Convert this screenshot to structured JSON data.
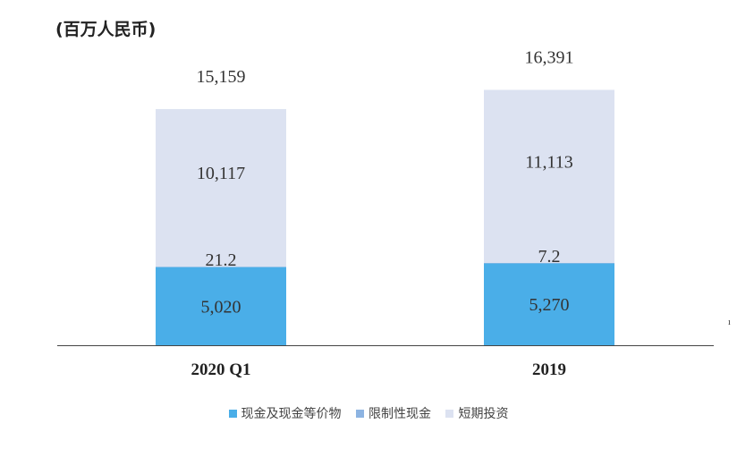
{
  "unit_label": "(百万人民币)",
  "stray_mark": "ı",
  "colors": {
    "cash": "#4aaee8",
    "restricted": "#8db4e2",
    "short_term": "#dce2f1"
  },
  "chart_data": {
    "type": "bar",
    "stacked": true,
    "categories": [
      "2020 Q1",
      "2019"
    ],
    "series": [
      {
        "name": "现金及现金等价物",
        "values": [
          5020,
          5270
        ],
        "labels": [
          "5,020",
          "5,270"
        ]
      },
      {
        "name": "限制性现金",
        "values": [
          21.2,
          7.2
        ],
        "labels": [
          "21.2",
          "7.2"
        ]
      },
      {
        "name": "短期投资",
        "values": [
          10117,
          11113
        ],
        "labels": [
          "10,117",
          "11,113"
        ]
      }
    ],
    "totals": [
      15159,
      16391
    ],
    "total_labels": [
      "15,159",
      "16,391"
    ],
    "ylim": [
      0,
      18000
    ],
    "grid": false,
    "legend_position": "bottom"
  }
}
